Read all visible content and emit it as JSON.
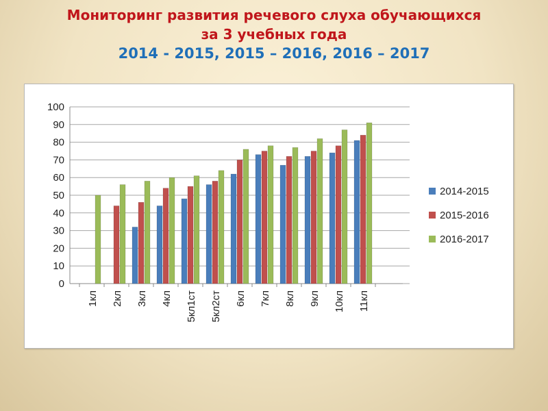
{
  "title": {
    "line1": "Мониторинг развития речевого слуха обучающихся",
    "line2": "за  3 учебных года",
    "line3": "2014 - 2015, 2015 – 2016, 2016 – 2017"
  },
  "chart_data": {
    "type": "bar",
    "categories": [
      "1кл",
      "2кл",
      "3кл",
      "4кл",
      "5кл1ст",
      "5кл2ст",
      "6кл",
      "7кл",
      "8кл",
      "9кл",
      "10кл",
      "11кл"
    ],
    "series": [
      {
        "name": "2014-2015",
        "color": "#4a7ebb",
        "values": [
          null,
          null,
          32,
          44,
          48,
          56,
          62,
          73,
          67,
          72,
          74,
          81
        ]
      },
      {
        "name": "2015-2016",
        "color": "#c0504d",
        "values": [
          null,
          44,
          46,
          54,
          55,
          58,
          70,
          75,
          72,
          75,
          78,
          84
        ]
      },
      {
        "name": "2016-2017",
        "color": "#9bbb59",
        "values": [
          50,
          56,
          58,
          60,
          61,
          64,
          76,
          78,
          77,
          82,
          87,
          91
        ]
      }
    ],
    "ylim": [
      0,
      100
    ],
    "yticks": [
      0,
      10,
      20,
      30,
      40,
      50,
      60,
      70,
      80,
      90,
      100
    ],
    "grid": true,
    "legend": "right"
  }
}
